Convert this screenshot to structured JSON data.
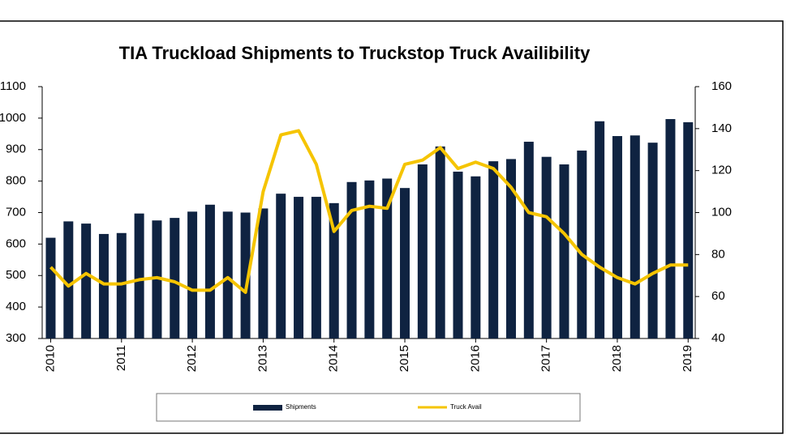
{
  "chart_data": {
    "type": "combo",
    "title": "TIA Truckload Shipments to Truckstop Truck Availibility",
    "x": [
      2010,
      2010.25,
      2010.5,
      2010.75,
      2011,
      2011.25,
      2011.5,
      2011.75,
      2012,
      2012.25,
      2012.5,
      2012.75,
      2013,
      2013.25,
      2013.5,
      2013.75,
      2014,
      2014.25,
      2014.5,
      2014.75,
      2015,
      2015.25,
      2015.5,
      2015.75,
      2016,
      2016.25,
      2016.5,
      2016.75,
      2017,
      2017.25,
      2017.5,
      2017.75,
      2018,
      2018.25,
      2018.5,
      2018.75,
      2019
    ],
    "series": [
      {
        "name": "Shipments",
        "type": "bar",
        "color": "#0f2341",
        "values": [
          620,
          672,
          665,
          632,
          635,
          697,
          675,
          683,
          703,
          725,
          703,
          700,
          713,
          760,
          750,
          750,
          730,
          797,
          802,
          808,
          778,
          853,
          910,
          830,
          815,
          863,
          870,
          925,
          877,
          853,
          897,
          990,
          943,
          945,
          922,
          997,
          987
        ]
      },
      {
        "name": "Truck Avail",
        "type": "line",
        "axis": "y2",
        "color": "#f5c400",
        "values": [
          74,
          65,
          71,
          66,
          66,
          68,
          69,
          67,
          63,
          63,
          69,
          62,
          110,
          137,
          139,
          123,
          91,
          101,
          103,
          102,
          123,
          125,
          131,
          121,
          124,
          121,
          112,
          100,
          98,
          90,
          80,
          74,
          69,
          66,
          71,
          75,
          75
        ]
      }
    ],
    "xlim": [
      2009.88,
      2019.1
    ],
    "xticks": [
      2010,
      2011,
      2012,
      2013,
      2014,
      2015,
      2016,
      2017,
      2018,
      2019
    ],
    "ylim": [
      300,
      1100
    ],
    "yticks": [
      300,
      400,
      500,
      600,
      700,
      800,
      900,
      1000,
      1100
    ],
    "y2lim": [
      40,
      160
    ],
    "y2ticks": [
      40,
      60,
      80,
      100,
      120,
      140,
      160
    ],
    "legend": "bottom"
  }
}
